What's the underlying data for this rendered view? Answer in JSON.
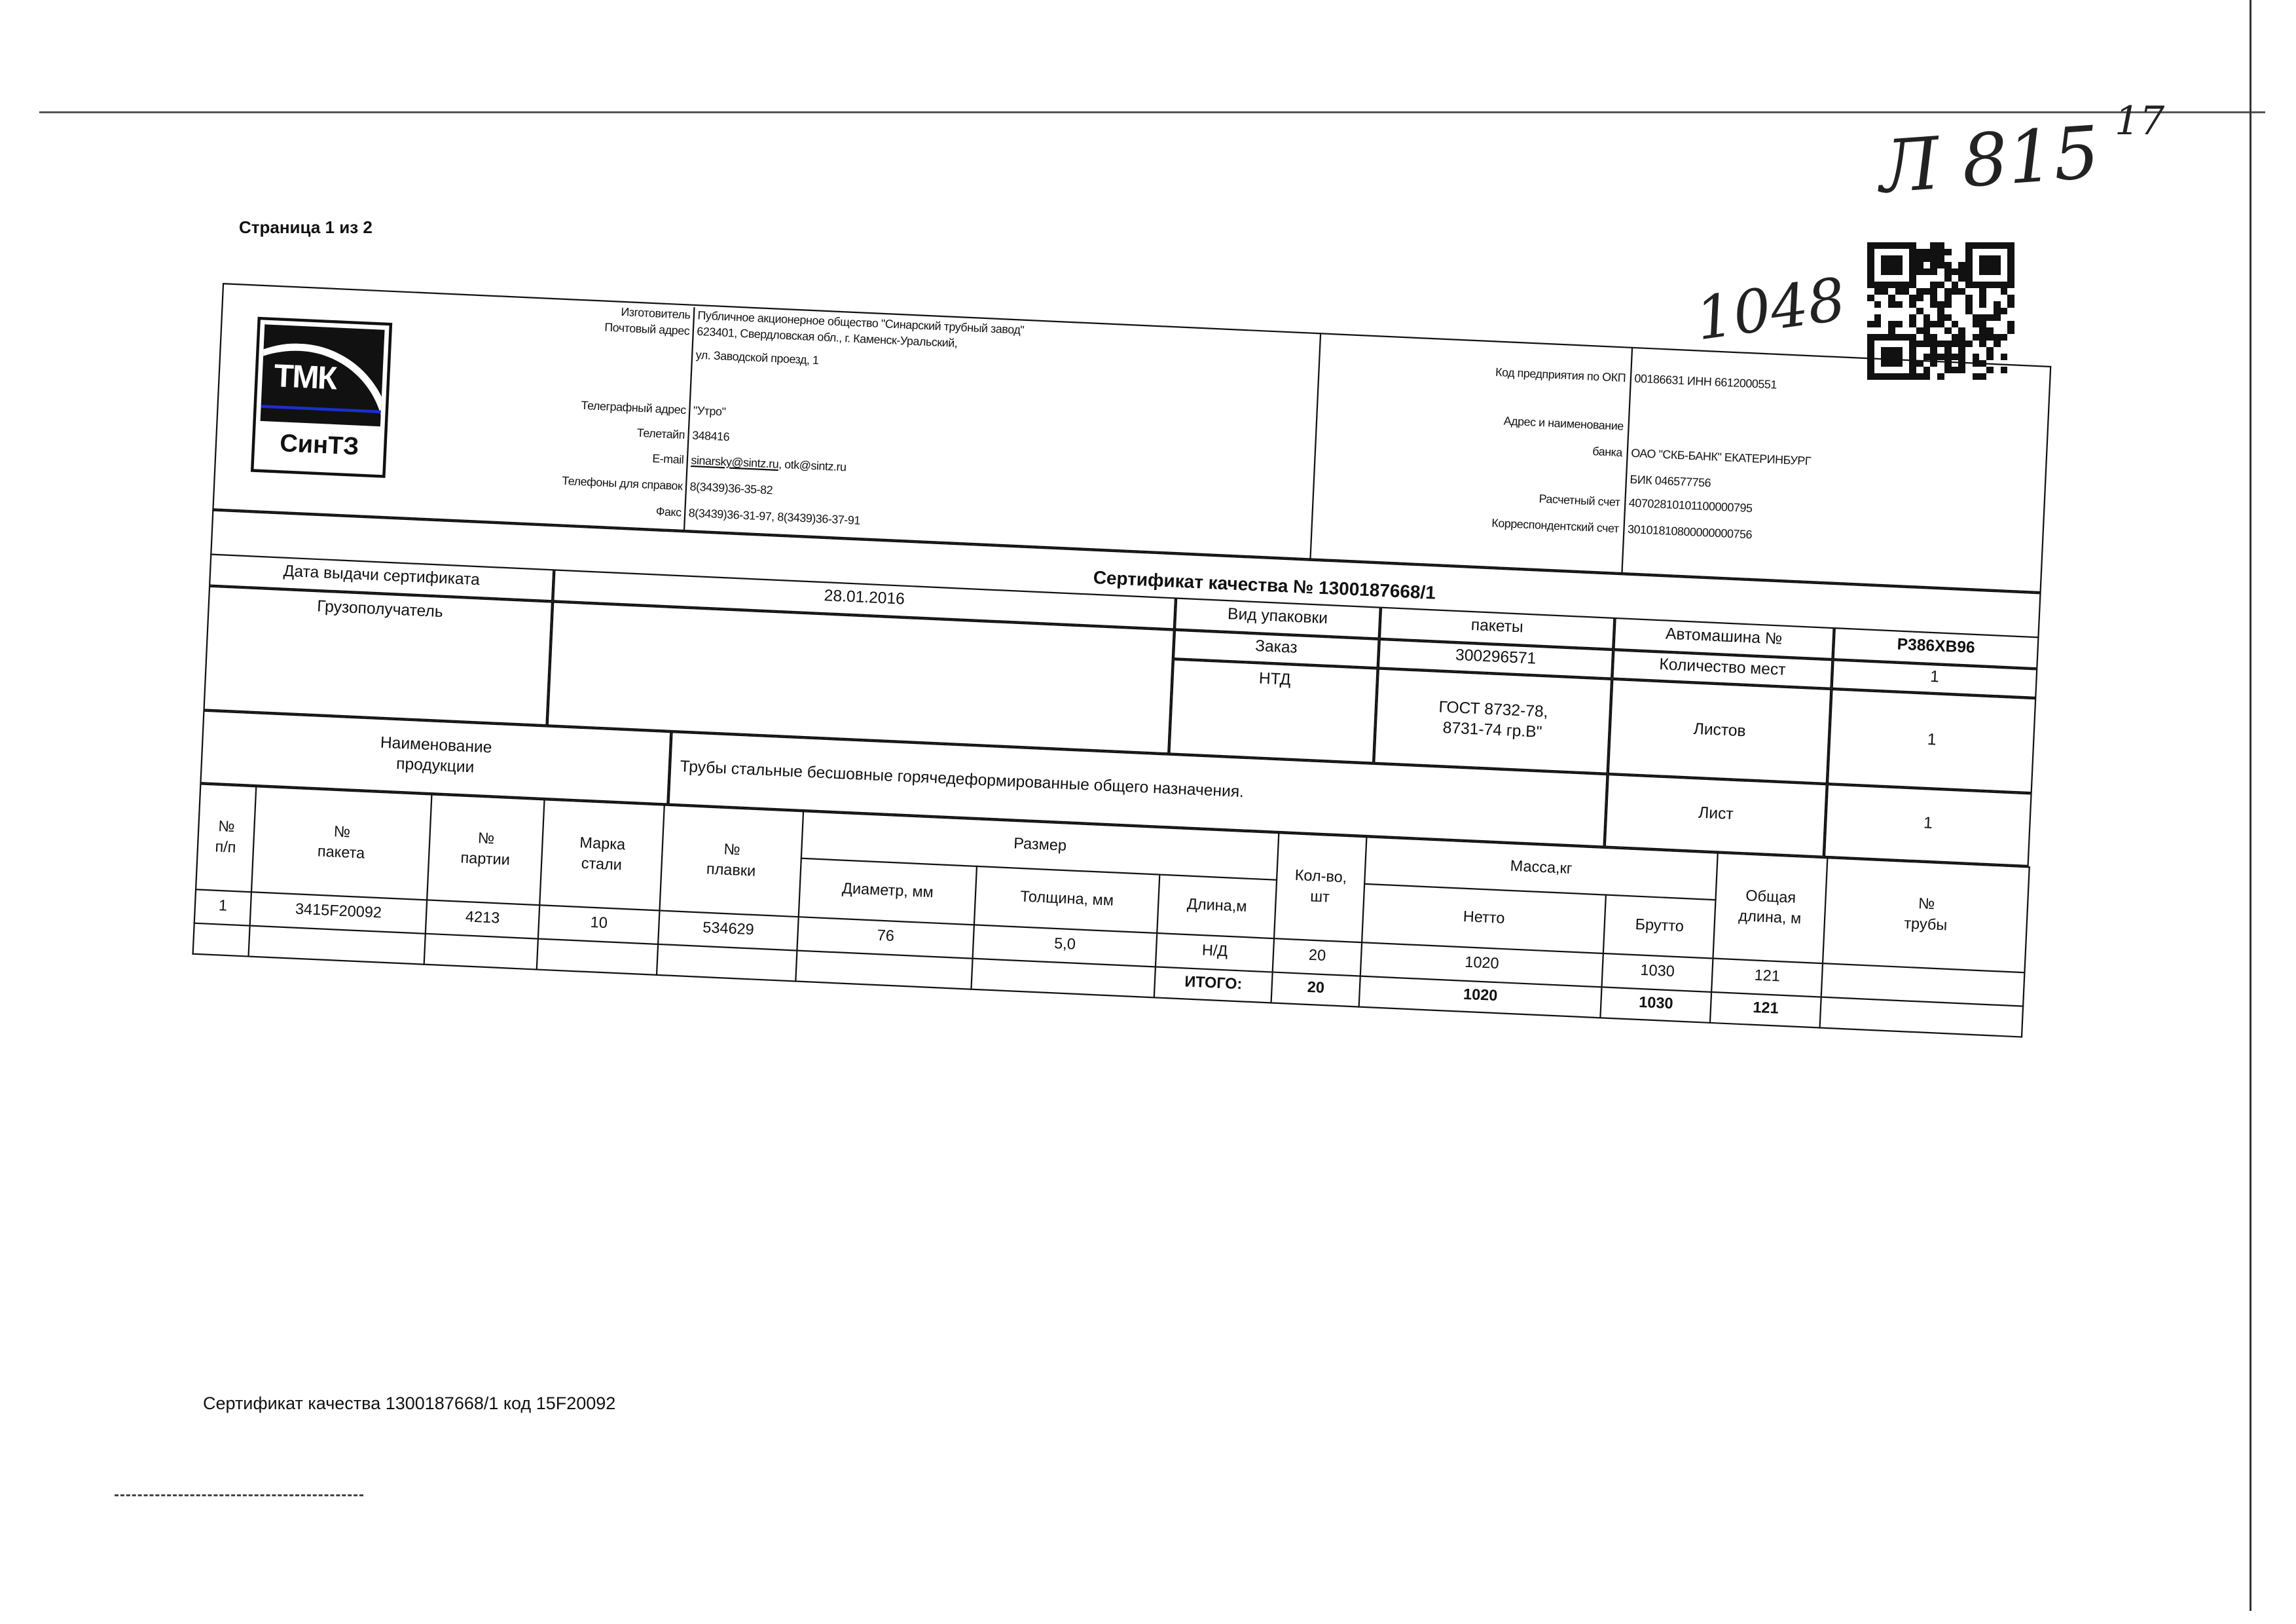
{
  "page": {
    "page_number": "Страница 1 из 2",
    "handwritten_ref": "Л 815",
    "handwritten_sup": "17",
    "handwritten_number": "1048"
  },
  "logo": {
    "top": "ТМК",
    "bottom": "СинТЗ",
    "accent": "#1a2fd0"
  },
  "manufacturer": {
    "maker_label": "Изготовитель",
    "maker_value": "Публичное акционерное общество \"Синарский трубный завод\"",
    "address_label": "Почтовый адрес",
    "address_line1": "623401, Свердловская обл., г. Каменск-Уральский,",
    "address_line2": "ул. Заводской проезд, 1",
    "telegraph_label": "Телеграфный адрес",
    "telegraph_value": "\"Утро\"",
    "teletype_label": "Телетайп",
    "teletype_value": "348416",
    "email_label": "E-mail",
    "email_primary": "sinarsky@sintz.ru",
    "email_secondary": ", otk@sintz.ru",
    "phones_label": "Телефоны для справок",
    "phones_value": "8(3439)36-35-82",
    "fax_label": "Факс",
    "fax_value": "8(3439)36-31-97, 8(3439)36-37-91"
  },
  "bank": {
    "okp_label": "Код предприятия по ОКП",
    "okp_value": "00186631 ИНН 6612000551",
    "bank_label_1": "Адрес и наименование",
    "bank_label_2": "банка",
    "bank_value": "ОАО \"СКБ-БАНК\" ЕКАТЕРИНБУРГ",
    "bik_value": "БИК 046577756",
    "account_label": "Расчетный счет",
    "account_value": "40702810101100000795",
    "corr_label": "Корреспондентский счет",
    "corr_value": "30101810800000000756"
  },
  "certificate": {
    "title": "Сертификат качества №  1300187668/1",
    "issue_date_label": "Дата выдачи сертификата",
    "issue_date": "28.01.2016",
    "consignee_label": "Грузополучатель",
    "consignee_value": "",
    "packaging_label": "Вид упаковки",
    "packaging_value": "пакеты",
    "order_label": "Заказ",
    "order_value": "300296571",
    "ntd_label": "НТД",
    "ntd_value_line1": "ГОСТ 8732-78,",
    "ntd_value_line2": "8731-74  гр.В\"",
    "vehicle_label": "Автомашина №",
    "vehicle_value": "Р386ХВ96",
    "places_label": "Количество мест",
    "places_value": "1",
    "sheets_label": "Листов",
    "sheets_value": "1",
    "sheet_label": "Лист",
    "sheet_value": "1",
    "product_label_1": "Наименование",
    "product_label_2": "продукции",
    "product_value": "Трубы стальные бесшовные горячедеформированные общего назначения."
  },
  "table": {
    "headers": {
      "row_no": [
        "№",
        "п/п"
      ],
      "package_no": [
        "№",
        "пакета"
      ],
      "batch_no": [
        "№",
        "партии"
      ],
      "steel_grade": [
        "Марка",
        "стали"
      ],
      "heat_no": [
        "№",
        "плавки"
      ],
      "size": "Размер",
      "diameter": "Диаметр, мм",
      "thickness": "Толщина, мм",
      "length": "Длина,м",
      "quantity": [
        "Кол-во,",
        "шт"
      ],
      "mass": "Масса,кг",
      "net": "Нетто",
      "gross": "Брутто",
      "total_length": [
        "Общая",
        "длина, м"
      ],
      "pipe_no": [
        "№",
        "трубы"
      ]
    },
    "rows": [
      {
        "row_no": "1",
        "package_no": "3415F20092",
        "batch_no": "4213",
        "steel_grade": "10",
        "heat_no": "534629",
        "diameter": "76",
        "thickness": "5,0",
        "length": "Н/Д",
        "quantity": "20",
        "net": "1020",
        "gross": "1030",
        "total_length": "121",
        "pipe_no": ""
      }
    ],
    "total": {
      "label": "ИТОГО:",
      "quantity": "20",
      "net": "1020",
      "gross": "1030",
      "total_length": "121"
    }
  },
  "footer": "Сертификат качества 1300187668/1 код 15F20092"
}
